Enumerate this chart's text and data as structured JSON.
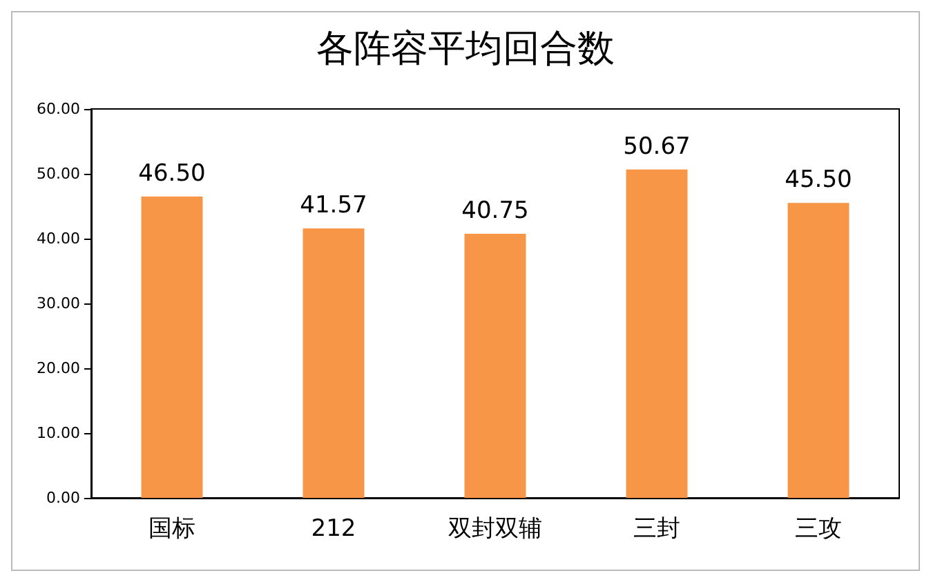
{
  "chart_data": {
    "type": "bar",
    "title": "各阵容平均回合数",
    "categories": [
      "国标",
      "212",
      "双封双辅",
      "三封",
      "三攻"
    ],
    "values": [
      46.5,
      41.57,
      40.75,
      50.67,
      45.5
    ],
    "value_labels": [
      "46.50",
      "41.57",
      "40.75",
      "50.67",
      "45.50"
    ],
    "color": "#f79646",
    "ylim": [
      0,
      60
    ],
    "yticks": [
      {
        "value": 0,
        "label": "0.00"
      },
      {
        "value": 10,
        "label": "10.00"
      },
      {
        "value": 20,
        "label": "20.00"
      },
      {
        "value": 30,
        "label": "30.00"
      },
      {
        "value": 40,
        "label": "40.00"
      },
      {
        "value": 50,
        "label": "50.00"
      },
      {
        "value": 60,
        "label": "60.00"
      }
    ],
    "grid": false
  }
}
